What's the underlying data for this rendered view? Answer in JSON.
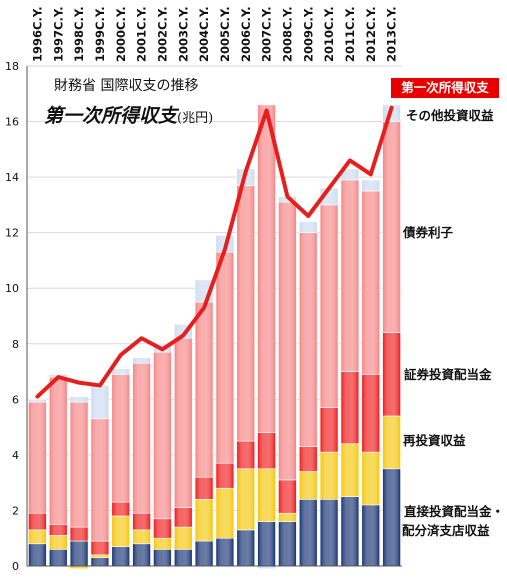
{
  "titles": {
    "main": "財務省 国際収支の推移",
    "sub": "第一次所得収支",
    "unit": "(兆円)"
  },
  "legend": {
    "line": "第一次所得収支",
    "other": "その他投資収益",
    "bond": "債券利子",
    "portfolio_div": "証券投資配当金",
    "reinvest": "再投資収益",
    "direct_line1": "直接投資配当金・",
    "direct_line2": "配分済支店収益"
  },
  "colors": {
    "navy": "#0d2a6e",
    "yellow": "#f4c400",
    "red": "#ee1111",
    "salmon": "#f58080",
    "lightblue": "#c9d9ef",
    "line": "#e61e1e"
  },
  "chart_data": {
    "type": "bar",
    "stacked": true,
    "categories": [
      "1996C.Y.",
      "1997C.Y.",
      "1998C.Y.",
      "1999C.Y.",
      "2000C.Y.",
      "2001C.Y.",
      "2002C.Y.",
      "2003C.Y.",
      "2004C.Y.",
      "2005C.Y.",
      "2006C.Y.",
      "2007C.Y.",
      "2008C.Y.",
      "2009C.Y.",
      "2010C.Y.",
      "2011C.Y.",
      "2012C.Y.",
      "2013C.Y."
    ],
    "ylim": [
      0,
      18
    ],
    "yticks": [
      "0",
      "2",
      "4",
      "6",
      "8",
      "10",
      "12",
      "14",
      "16",
      "18"
    ],
    "series": [
      {
        "name": "直接投資配当金・配分済支店収益",
        "color": "#0d2a6e",
        "values": [
          0.8,
          0.6,
          0.9,
          0.3,
          0.7,
          0.8,
          0.6,
          0.6,
          0.9,
          1.0,
          1.3,
          1.6,
          1.6,
          2.4,
          2.4,
          2.5,
          2.2,
          3.5
        ]
      },
      {
        "name": "再投資収益",
        "color": "#f4c400",
        "values": [
          0.5,
          0.5,
          -0.1,
          0.1,
          1.1,
          0.5,
          0.4,
          0.8,
          1.5,
          1.8,
          2.2,
          1.9,
          0.3,
          1.0,
          1.7,
          1.9,
          1.9,
          1.9
        ]
      },
      {
        "name": "証券投資配当金",
        "color": "#ee1111",
        "values": [
          0.6,
          0.4,
          0.5,
          0.5,
          0.5,
          0.6,
          0.7,
          0.7,
          0.8,
          0.9,
          1.0,
          1.3,
          1.2,
          0.9,
          1.6,
          2.6,
          2.8,
          3.0
        ]
      },
      {
        "name": "債券利子",
        "color": "#f58080",
        "values": [
          4.0,
          5.3,
          4.5,
          4.4,
          4.6,
          5.4,
          6.0,
          6.1,
          6.3,
          7.6,
          9.2,
          11.8,
          10.0,
          7.7,
          7.3,
          6.9,
          6.6,
          7.6
        ]
      },
      {
        "name": "その他投資収益",
        "color": "#c9d9ef",
        "values": [
          0.1,
          0.1,
          0.2,
          1.2,
          0.2,
          0.2,
          0.3,
          0.5,
          0.8,
          0.6,
          0.6,
          -0.1,
          0.2,
          0.4,
          0.6,
          0.4,
          0.4,
          0.6
        ]
      }
    ],
    "line": {
      "name": "第一次所得収支",
      "values": [
        6.1,
        6.8,
        6.6,
        6.5,
        7.6,
        8.2,
        7.8,
        8.3,
        9.3,
        11.4,
        14.2,
        16.4,
        13.3,
        12.6,
        13.6,
        14.6,
        14.1,
        16.5
      ]
    },
    "grid": true,
    "legend": "right"
  }
}
